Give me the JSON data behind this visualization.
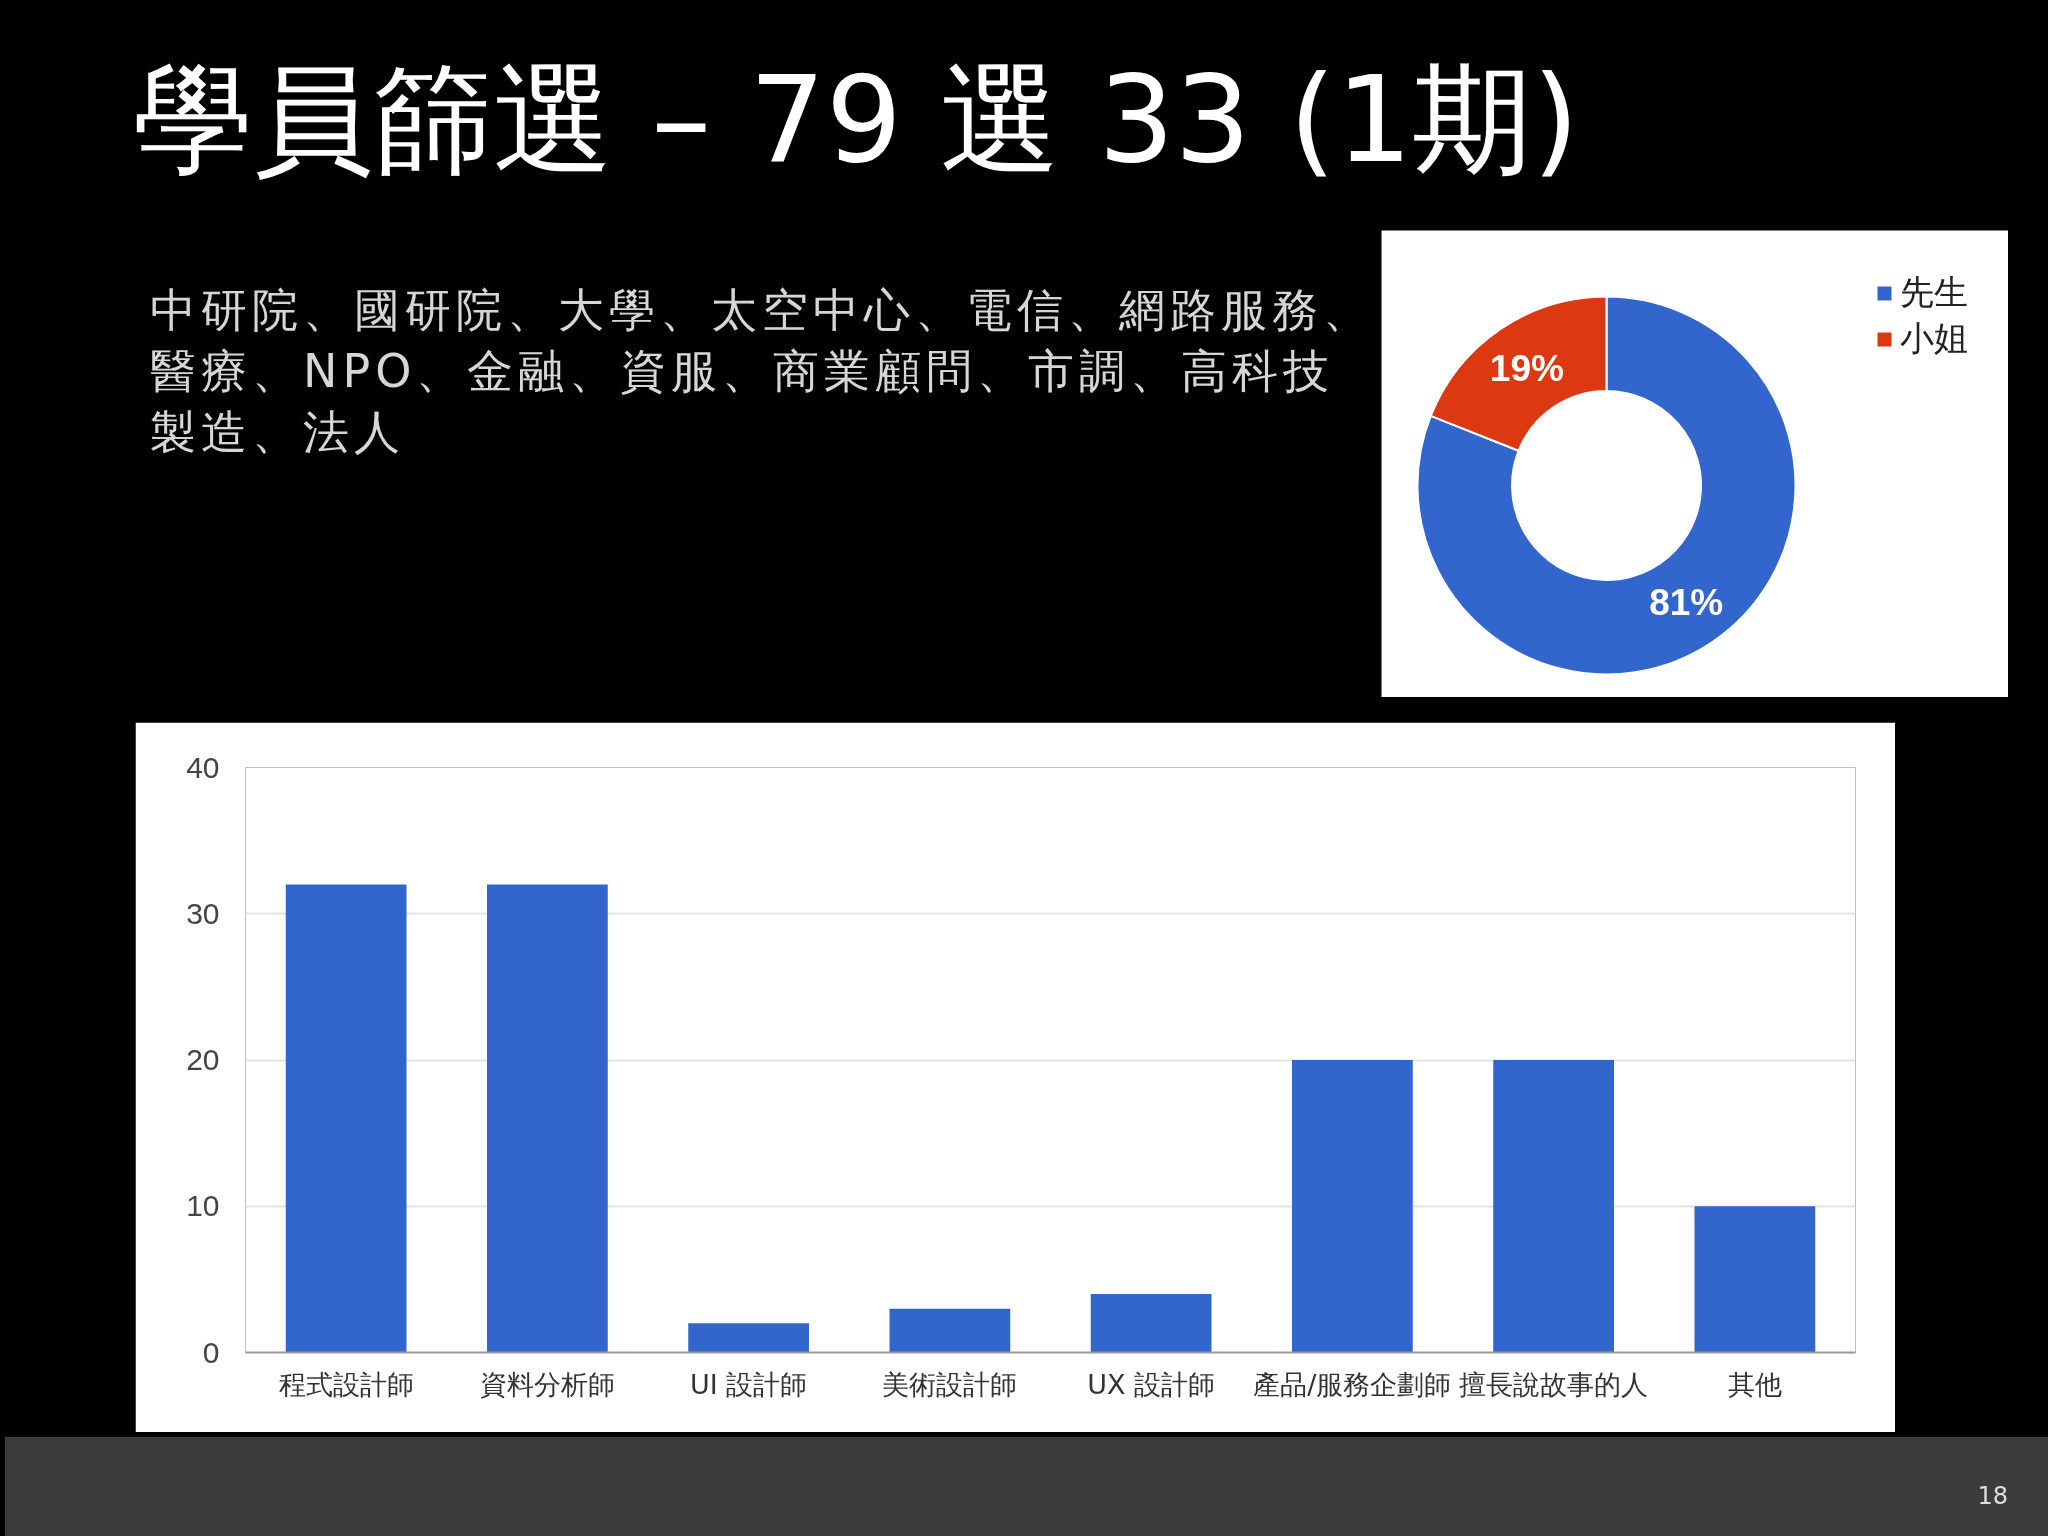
{
  "chart_data": [
    {
      "type": "donut",
      "title": "學員篩選 – 79 選 33 (1期)",
      "annotations": [
        "中研院、國研院、大學、太空中心、電信、網路服務、醫療、NPO、金融、資服、商業顧問、市調、高科技製造、法人"
      ],
      "categories": [
        "先生",
        "小姐"
      ],
      "values": [
        81,
        19
      ],
      "colors": [
        "#3366cc",
        "#dc3912"
      ],
      "value_labels": [
        "81%",
        "19%"
      ],
      "legend": "top right"
    },
    {
      "type": "bar",
      "categories": [
        "程式設計師",
        "資料分析師",
        "UI 設計師",
        "美術設計師",
        "UX 設計師",
        "產品/服務企劃師",
        "擅長說故事的人",
        "其他"
      ],
      "values": [
        32,
        32,
        2,
        3,
        4,
        20,
        20,
        10
      ],
      "color": "#3366cc",
      "ylim": [
        0,
        40
      ],
      "yticks": [
        0,
        10,
        20,
        30,
        40
      ],
      "grid": "y",
      "annotations": [
        "18"
      ]
    }
  ]
}
